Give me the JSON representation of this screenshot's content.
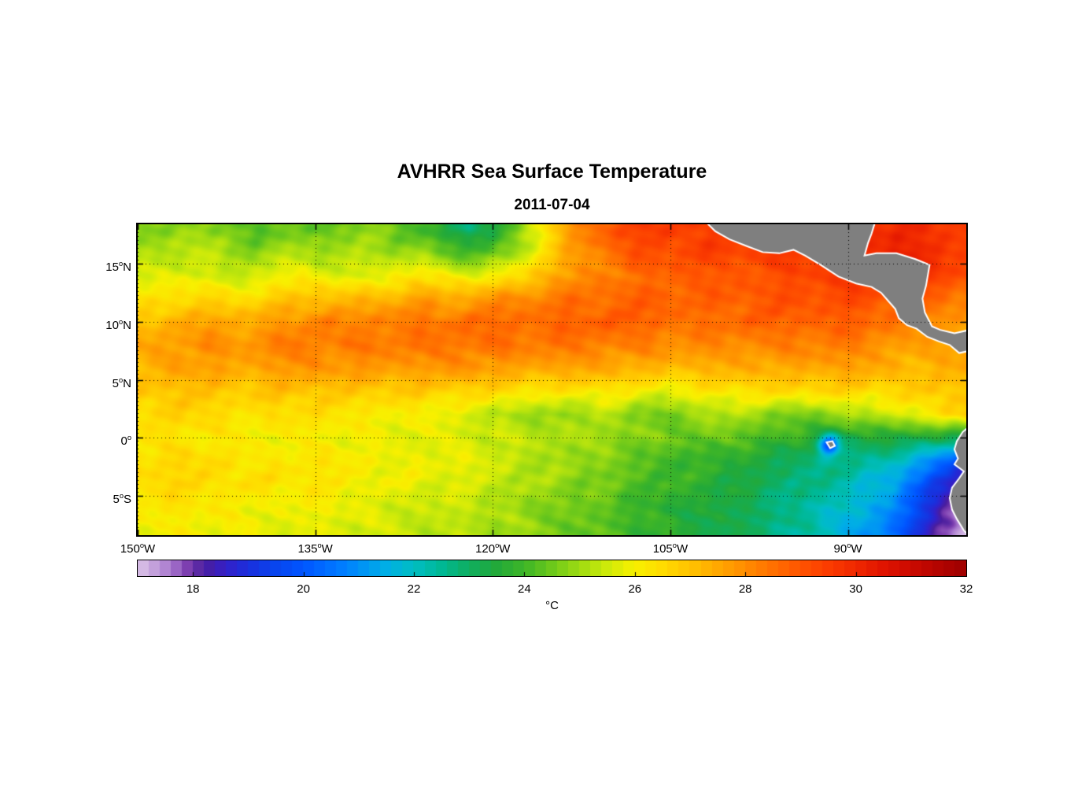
{
  "chart_data": {
    "type": "heatmap",
    "title": "AVHRR Sea Surface Temperature",
    "subtitle": "2011-07-04",
    "xlabel": "",
    "ylabel": "",
    "lon_range": [
      -150,
      -80
    ],
    "lat_range": [
      -8.4,
      18.4
    ],
    "grid_on": true,
    "xticks": [
      {
        "value": -150,
        "label": "150",
        "sup": "o",
        "suffix": "W"
      },
      {
        "value": -135,
        "label": "135",
        "sup": "o",
        "suffix": "W"
      },
      {
        "value": -120,
        "label": "120",
        "sup": "o",
        "suffix": "W"
      },
      {
        "value": -105,
        "label": "105",
        "sup": "o",
        "suffix": "W"
      },
      {
        "value": -90,
        "label": "90",
        "sup": "o",
        "suffix": "W"
      }
    ],
    "yticks": [
      {
        "value": 15,
        "label": "15",
        "sup": "o",
        "suffix": "N"
      },
      {
        "value": 10,
        "label": "10",
        "sup": "o",
        "suffix": "N"
      },
      {
        "value": 5,
        "label": "5",
        "sup": "o",
        "suffix": "N"
      },
      {
        "value": 0,
        "label": "0",
        "sup": "o",
        "suffix": ""
      },
      {
        "value": -5,
        "label": "5",
        "sup": "o",
        "suffix": "S"
      }
    ],
    "colorbar": {
      "min": 17,
      "max": 32,
      "ticks": [
        18,
        20,
        22,
        24,
        26,
        28,
        30,
        32
      ],
      "label": "°C",
      "segment_step": 0.2,
      "stops": [
        [
          17.0,
          "#DCC6E8"
        ],
        [
          17.3,
          "#C3A0DB"
        ],
        [
          17.6,
          "#A briefly"
        ],
        [
          17.6,
          "#A878CE"
        ],
        [
          17.9,
          "#7D3FB0"
        ],
        [
          18.2,
          "#4A1E9E"
        ],
        [
          18.6,
          "#3320C8"
        ],
        [
          19.0,
          "#1B2FDC"
        ],
        [
          19.5,
          "#0845EE"
        ],
        [
          20.0,
          "#0055FF"
        ],
        [
          20.8,
          "#0082FF"
        ],
        [
          21.5,
          "#00AEE6"
        ],
        [
          22.0,
          "#00BDC3"
        ],
        [
          22.5,
          "#00B894"
        ],
        [
          23.0,
          "#0FAE5F"
        ],
        [
          23.5,
          "#22A93A"
        ],
        [
          24.0,
          "#3DB528"
        ],
        [
          24.5,
          "#6CC81B"
        ],
        [
          25.0,
          "#9EDB12"
        ],
        [
          25.5,
          "#CDEA0A"
        ],
        [
          26.0,
          "#F8F000"
        ],
        [
          26.5,
          "#FFDC00"
        ],
        [
          27.0,
          "#FFC300"
        ],
        [
          27.5,
          "#FFA800"
        ],
        [
          28.0,
          "#FF8C00"
        ],
        [
          28.5,
          "#FF7000"
        ],
        [
          29.0,
          "#FF5400"
        ],
        [
          29.5,
          "#FB3C00"
        ],
        [
          30.0,
          "#F02800"
        ],
        [
          30.5,
          "#E01400"
        ],
        [
          31.0,
          "#CC0A00"
        ],
        [
          31.5,
          "#B40400"
        ],
        [
          32.0,
          "#9E0000"
        ]
      ]
    },
    "land_color": "#7f7f7f",
    "coast_color": "#ffffff",
    "grid": {
      "lon_start": -150,
      "lon_step": 2,
      "lat_start": 18,
      "lat_step": -2,
      "values": [
        [
          24.6,
          24.8,
          25.0,
          24.8,
          24.4,
          24.2,
          24.4,
          24.6,
          24.4,
          24.6,
          24.8,
          24.4,
          24.0,
          23.6,
          22.8,
          23.2,
          24.5,
          26.0,
          27.5,
          28.5,
          29.0,
          29.3,
          29.5,
          29.5,
          29.5,
          29.5,
          29.5,
          29.5,
          29.5,
          29.5,
          29.7,
          29.8,
          30.0,
          29.8,
          29.6,
          29.5
        ],
        [
          25.0,
          25.2,
          25.4,
          25.2,
          25.0,
          24.8,
          25.0,
          25.2,
          25.0,
          25.0,
          25.2,
          25.0,
          24.8,
          24.4,
          24.0,
          24.2,
          25.0,
          26.2,
          27.2,
          28.0,
          28.5,
          29.0,
          29.2,
          29.3,
          29.4,
          29.4,
          29.5,
          29.5,
          29.5,
          29.6,
          29.8,
          30.0,
          30.2,
          30.0,
          29.8,
          29.6
        ],
        [
          25.5,
          25.6,
          25.8,
          25.6,
          25.4,
          25.6,
          25.8,
          26.0,
          25.8,
          25.6,
          25.8,
          26.0,
          26.2,
          26.0,
          25.8,
          26.0,
          26.5,
          27.0,
          27.5,
          28.0,
          28.3,
          28.5,
          28.7,
          28.8,
          28.8,
          28.9,
          29.0,
          29.2,
          29.3,
          29.4,
          29.5,
          29.6,
          29.8,
          29.6,
          29.4,
          29.2
        ],
        [
          26.2,
          26.4,
          26.6,
          26.5,
          26.4,
          26.6,
          26.8,
          27.0,
          27.2,
          27.0,
          27.2,
          27.4,
          27.6,
          27.4,
          27.6,
          27.8,
          28.0,
          28.2,
          28.4,
          28.5,
          28.6,
          28.7,
          28.8,
          28.8,
          28.7,
          28.8,
          28.9,
          29.0,
          29.1,
          29.2,
          29.2,
          29.1,
          29.0,
          28.8,
          28.6,
          28.4
        ],
        [
          27.0,
          27.2,
          27.4,
          27.5,
          27.4,
          27.6,
          27.8,
          28.0,
          28.2,
          28.0,
          28.2,
          28.4,
          28.5,
          28.4,
          28.5,
          28.6,
          28.6,
          28.7,
          28.8,
          28.8,
          28.8,
          28.8,
          28.7,
          28.6,
          28.5,
          28.6,
          28.7,
          28.8,
          28.8,
          28.9,
          28.8,
          28.6,
          28.4,
          28.2,
          28.0,
          27.8
        ],
        [
          27.4,
          27.6,
          27.8,
          28.0,
          27.8,
          28.0,
          28.2,
          28.3,
          28.2,
          28.3,
          28.4,
          28.4,
          28.3,
          28.4,
          28.4,
          28.5,
          28.4,
          28.4,
          28.3,
          28.3,
          28.2,
          28.2,
          28.1,
          28.0,
          28.0,
          28.0,
          28.1,
          28.2,
          28.2,
          28.3,
          28.2,
          28.0,
          27.8,
          27.6,
          27.5,
          27.6
        ],
        [
          27.2,
          27.4,
          27.6,
          27.6,
          27.5,
          27.6,
          27.8,
          27.8,
          27.7,
          27.8,
          27.8,
          27.8,
          27.7,
          27.8,
          27.8,
          27.7,
          27.6,
          27.6,
          27.5,
          27.5,
          27.4,
          27.4,
          27.3,
          27.2,
          27.2,
          27.3,
          27.4,
          27.5,
          27.5,
          27.6,
          27.5,
          27.4,
          27.3,
          27.2,
          27.4,
          27.6
        ],
        [
          26.8,
          27.0,
          27.0,
          26.9,
          26.8,
          26.9,
          27.0,
          27.0,
          26.9,
          26.8,
          26.8,
          26.9,
          26.8,
          26.7,
          26.6,
          26.5,
          26.4,
          26.3,
          26.2,
          26.3,
          26.2,
          26.0,
          25.8,
          26.0,
          26.2,
          26.3,
          26.4,
          26.5,
          26.6,
          26.7,
          26.6,
          26.5,
          26.6,
          26.8,
          27.0,
          27.0
        ],
        [
          26.5,
          26.6,
          26.6,
          26.5,
          26.4,
          26.4,
          26.5,
          26.4,
          26.3,
          26.2,
          26.2,
          26.1,
          26.0,
          25.8,
          25.5,
          25.3,
          25.2,
          25.0,
          24.8,
          25.0,
          25.2,
          24.8,
          24.6,
          24.8,
          25.0,
          25.2,
          25.0,
          24.8,
          24.6,
          24.8,
          25.0,
          25.2,
          25.5,
          26.0,
          26.5,
          26.8
        ],
        [
          26.3,
          26.3,
          26.2,
          26.2,
          26.1,
          26.1,
          26.0,
          26.0,
          26.0,
          25.9,
          25.9,
          25.8,
          25.8,
          25.7,
          25.6,
          25.5,
          25.4,
          25.3,
          25.2,
          25.0,
          24.9,
          24.8,
          24.6,
          24.5,
          24.4,
          24.3,
          24.2,
          24.0,
          23.8,
          23.6,
          23.2,
          23.4,
          23.5,
          23.4,
          23.2,
          23.0
        ],
        [
          26.4,
          26.5,
          26.5,
          26.4,
          26.4,
          26.3,
          26.3,
          26.2,
          26.2,
          26.1,
          26.0,
          26.0,
          25.9,
          25.8,
          25.7,
          25.6,
          25.4,
          25.2,
          25.0,
          24.8,
          24.6,
          24.4,
          24.2,
          24.0,
          23.8,
          23.6,
          23.4,
          23.2,
          23.0,
          22.8,
          22.5,
          22.3,
          22.0,
          21.5,
          20.5,
          19.5
        ],
        [
          26.6,
          26.6,
          26.5,
          26.5,
          26.4,
          26.4,
          26.3,
          26.3,
          26.2,
          26.1,
          26.0,
          25.9,
          25.8,
          25.7,
          25.6,
          25.5,
          25.3,
          25.1,
          24.9,
          24.7,
          24.5,
          24.3,
          24.1,
          23.9,
          23.7,
          23.5,
          23.2,
          23.0,
          22.8,
          22.5,
          22.2,
          21.8,
          21.2,
          20.2,
          19.0,
          18.0
        ],
        [
          26.2,
          26.2,
          26.2,
          26.1,
          26.1,
          26.0,
          26.0,
          25.9,
          25.9,
          25.8,
          25.7,
          25.6,
          25.5,
          25.4,
          25.3,
          25.2,
          25.0,
          24.8,
          24.6,
          24.4,
          24.2,
          24.0,
          23.8,
          23.6,
          23.4,
          23.2,
          23.0,
          22.8,
          22.5,
          22.2,
          21.8,
          21.4,
          20.8,
          19.8,
          18.2,
          17.3
        ],
        [
          26.0,
          26.0,
          26.0,
          26.0,
          25.9,
          25.9,
          25.8,
          25.8,
          25.7,
          25.7,
          25.6,
          25.5,
          25.4,
          25.3,
          25.2,
          25.1,
          25.0,
          24.8,
          24.6,
          24.4,
          24.2,
          24.0,
          23.8,
          23.6,
          23.4,
          23.2,
          23.0,
          22.7,
          22.4,
          22.0,
          21.6,
          21.0,
          20.2,
          19.2,
          17.8,
          17.0
        ]
      ]
    },
    "cold_spots": [
      {
        "lon": -91.6,
        "lat": -0.6,
        "radius": 0.9,
        "delta": -3.4
      }
    ],
    "land_polygons": {
      "central_america": [
        [
          -102.0,
          18.6
        ],
        [
          -101.2,
          17.8
        ],
        [
          -100.0,
          17.1
        ],
        [
          -98.5,
          16.5
        ],
        [
          -97.2,
          16.0
        ],
        [
          -95.8,
          15.9
        ],
        [
          -94.6,
          16.2
        ],
        [
          -93.6,
          15.7
        ],
        [
          -92.3,
          14.9
        ],
        [
          -90.8,
          13.9
        ],
        [
          -89.3,
          13.3
        ],
        [
          -88.0,
          13.0
        ],
        [
          -87.2,
          12.5
        ],
        [
          -86.6,
          11.8
        ],
        [
          -86.0,
          11.1
        ],
        [
          -85.7,
          10.3
        ],
        [
          -85.0,
          9.7
        ],
        [
          -84.2,
          9.4
        ],
        [
          -83.3,
          8.7
        ],
        [
          -82.3,
          8.3
        ],
        [
          -81.4,
          8.0
        ],
        [
          -80.6,
          7.3
        ],
        [
          -79.7,
          7.5
        ],
        [
          -79.7,
          9.3
        ],
        [
          -81.0,
          9.0
        ],
        [
          -82.2,
          9.3
        ],
        [
          -82.9,
          9.6
        ],
        [
          -83.5,
          10.8
        ],
        [
          -83.7,
          12.0
        ],
        [
          -83.4,
          13.1
        ],
        [
          -83.1,
          14.9
        ],
        [
          -84.3,
          15.4
        ],
        [
          -85.9,
          15.9
        ],
        [
          -87.6,
          15.9
        ],
        [
          -88.6,
          15.7
        ],
        [
          -88.3,
          16.8
        ],
        [
          -88.0,
          17.6
        ],
        [
          -87.7,
          18.6
        ]
      ],
      "south_america": [
        [
          -79.7,
          1.0
        ],
        [
          -80.3,
          0.5
        ],
        [
          -80.8,
          -0.3
        ],
        [
          -81.0,
          -1.0
        ],
        [
          -80.7,
          -1.8
        ],
        [
          -81.0,
          -2.3
        ],
        [
          -80.2,
          -2.9
        ],
        [
          -80.6,
          -3.5
        ],
        [
          -81.2,
          -4.3
        ],
        [
          -81.4,
          -5.2
        ],
        [
          -81.2,
          -6.2
        ],
        [
          -80.8,
          -7.0
        ],
        [
          -80.2,
          -8.0
        ],
        [
          -79.6,
          -8.6
        ],
        [
          -78.0,
          -8.6
        ],
        [
          -78.0,
          1.0
        ]
      ],
      "galapagos": [
        [
          -91.8,
          -0.4
        ],
        [
          -91.3,
          -0.3
        ],
        [
          -91.1,
          -0.7
        ],
        [
          -91.5,
          -0.9
        ]
      ]
    }
  }
}
